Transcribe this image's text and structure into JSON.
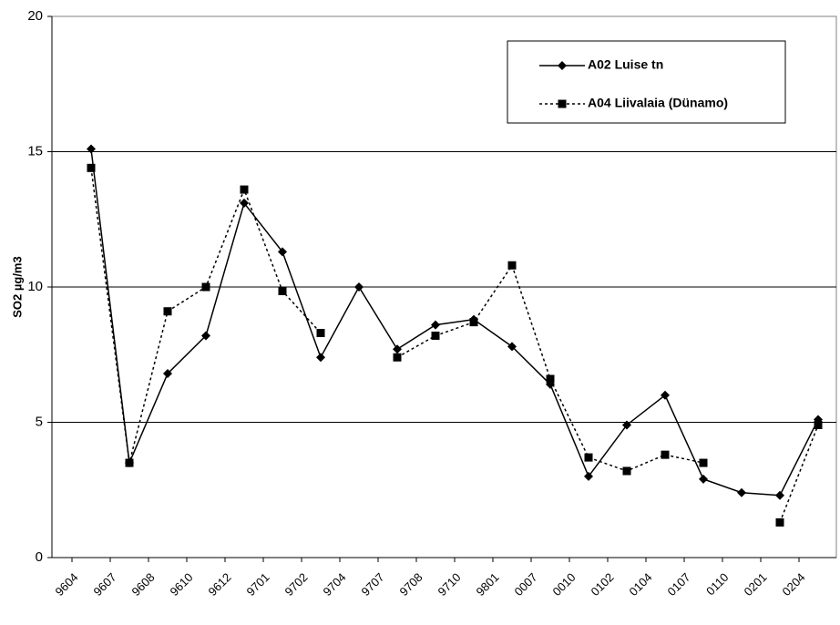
{
  "chart_data": {
    "type": "line",
    "y_label": "SO2 µg/m3",
    "categories": [
      "9604",
      "9607",
      "9608",
      "9610",
      "9612",
      "9701",
      "9702",
      "9704",
      "9707",
      "9708",
      "9710",
      "9801",
      "0007",
      "0010",
      "0102",
      "0104",
      "0107",
      "0110",
      "0201",
      "0204"
    ],
    "series": [
      {
        "name": "A02 Luise tn",
        "color": "#000000",
        "line_style": "solid",
        "marker": "diamond",
        "values": [
          15.1,
          3.5,
          6.8,
          8.2,
          13.1,
          11.3,
          7.4,
          10.0,
          7.7,
          8.6,
          8.8,
          7.8,
          6.4,
          3.0,
          4.9,
          6.0,
          2.9,
          2.4,
          2.3,
          5.1
        ]
      },
      {
        "name": "A04 Liivalaia (Dünamo)",
        "color": "#000000",
        "line_style": "dotted",
        "marker": "square",
        "values": [
          14.4,
          3.5,
          9.1,
          10.0,
          13.6,
          9.85,
          8.3,
          null,
          7.4,
          8.2,
          8.7,
          10.8,
          6.6,
          3.7,
          3.2,
          3.8,
          3.5,
          null,
          1.3,
          4.9
        ]
      }
    ],
    "ylim": [
      0,
      20
    ],
    "yticks": [
      0,
      5,
      10,
      15,
      20
    ],
    "grid": true,
    "legend": "top-right"
  }
}
